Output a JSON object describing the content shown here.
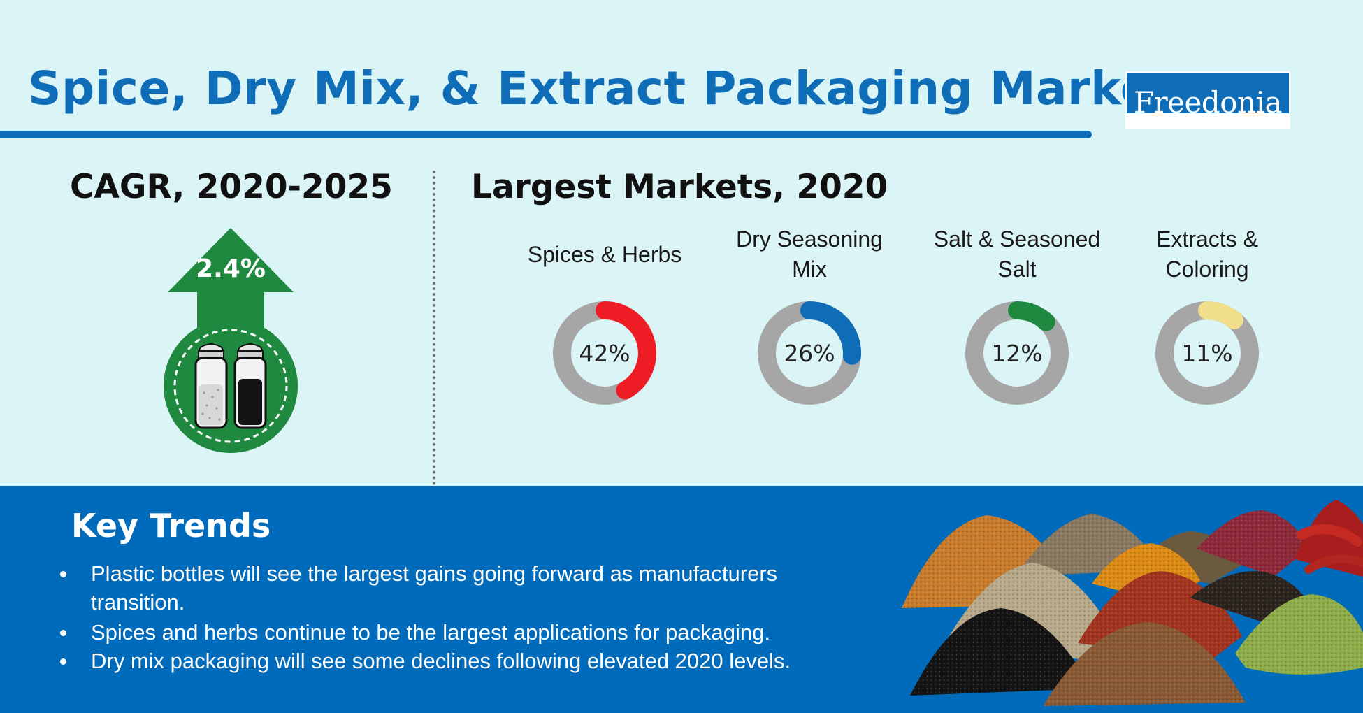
{
  "header": {
    "title": "Spice, Dry Mix, & Extract Packaging Market",
    "logo_text": "Freedonia"
  },
  "cagr": {
    "title": "CAGR, 2020-2025",
    "value": "2.4%",
    "value_number": 2.4,
    "icon": "salt-and-pepper-shakers-icon",
    "color": "#1f8a3f"
  },
  "chart_data": {
    "type": "donut",
    "title": "Largest Markets, 2020",
    "track_color": "#a6a6a6",
    "slices": [
      {
        "label": "Spices & Herbs",
        "value": 42,
        "display": "42%",
        "color": "#ee1c24"
      },
      {
        "label": "Dry Seasoning Mix",
        "value": 26,
        "display": "26%",
        "color": "#0f6db8"
      },
      {
        "label": "Salt & Seasoned Salt",
        "value": 12,
        "display": "12%",
        "color": "#1f8a3f"
      },
      {
        "label": "Extracts & Coloring",
        "value": 11,
        "display": "11%",
        "color": "#f1de8a"
      }
    ]
  },
  "trends": {
    "title": "Key Trends",
    "items": [
      "Plastic bottles will see the largest gains going forward as manufacturers transition.",
      "Spices and herbs continue to be the largest applications for packaging.",
      "Dry mix packaging will see some declines following elevated 2020 levels."
    ],
    "image": "spice-piles-photo"
  },
  "colors": {
    "background": "#dbf4f6",
    "brand_blue": "#0f6db8",
    "band_blue": "#006bbb"
  }
}
